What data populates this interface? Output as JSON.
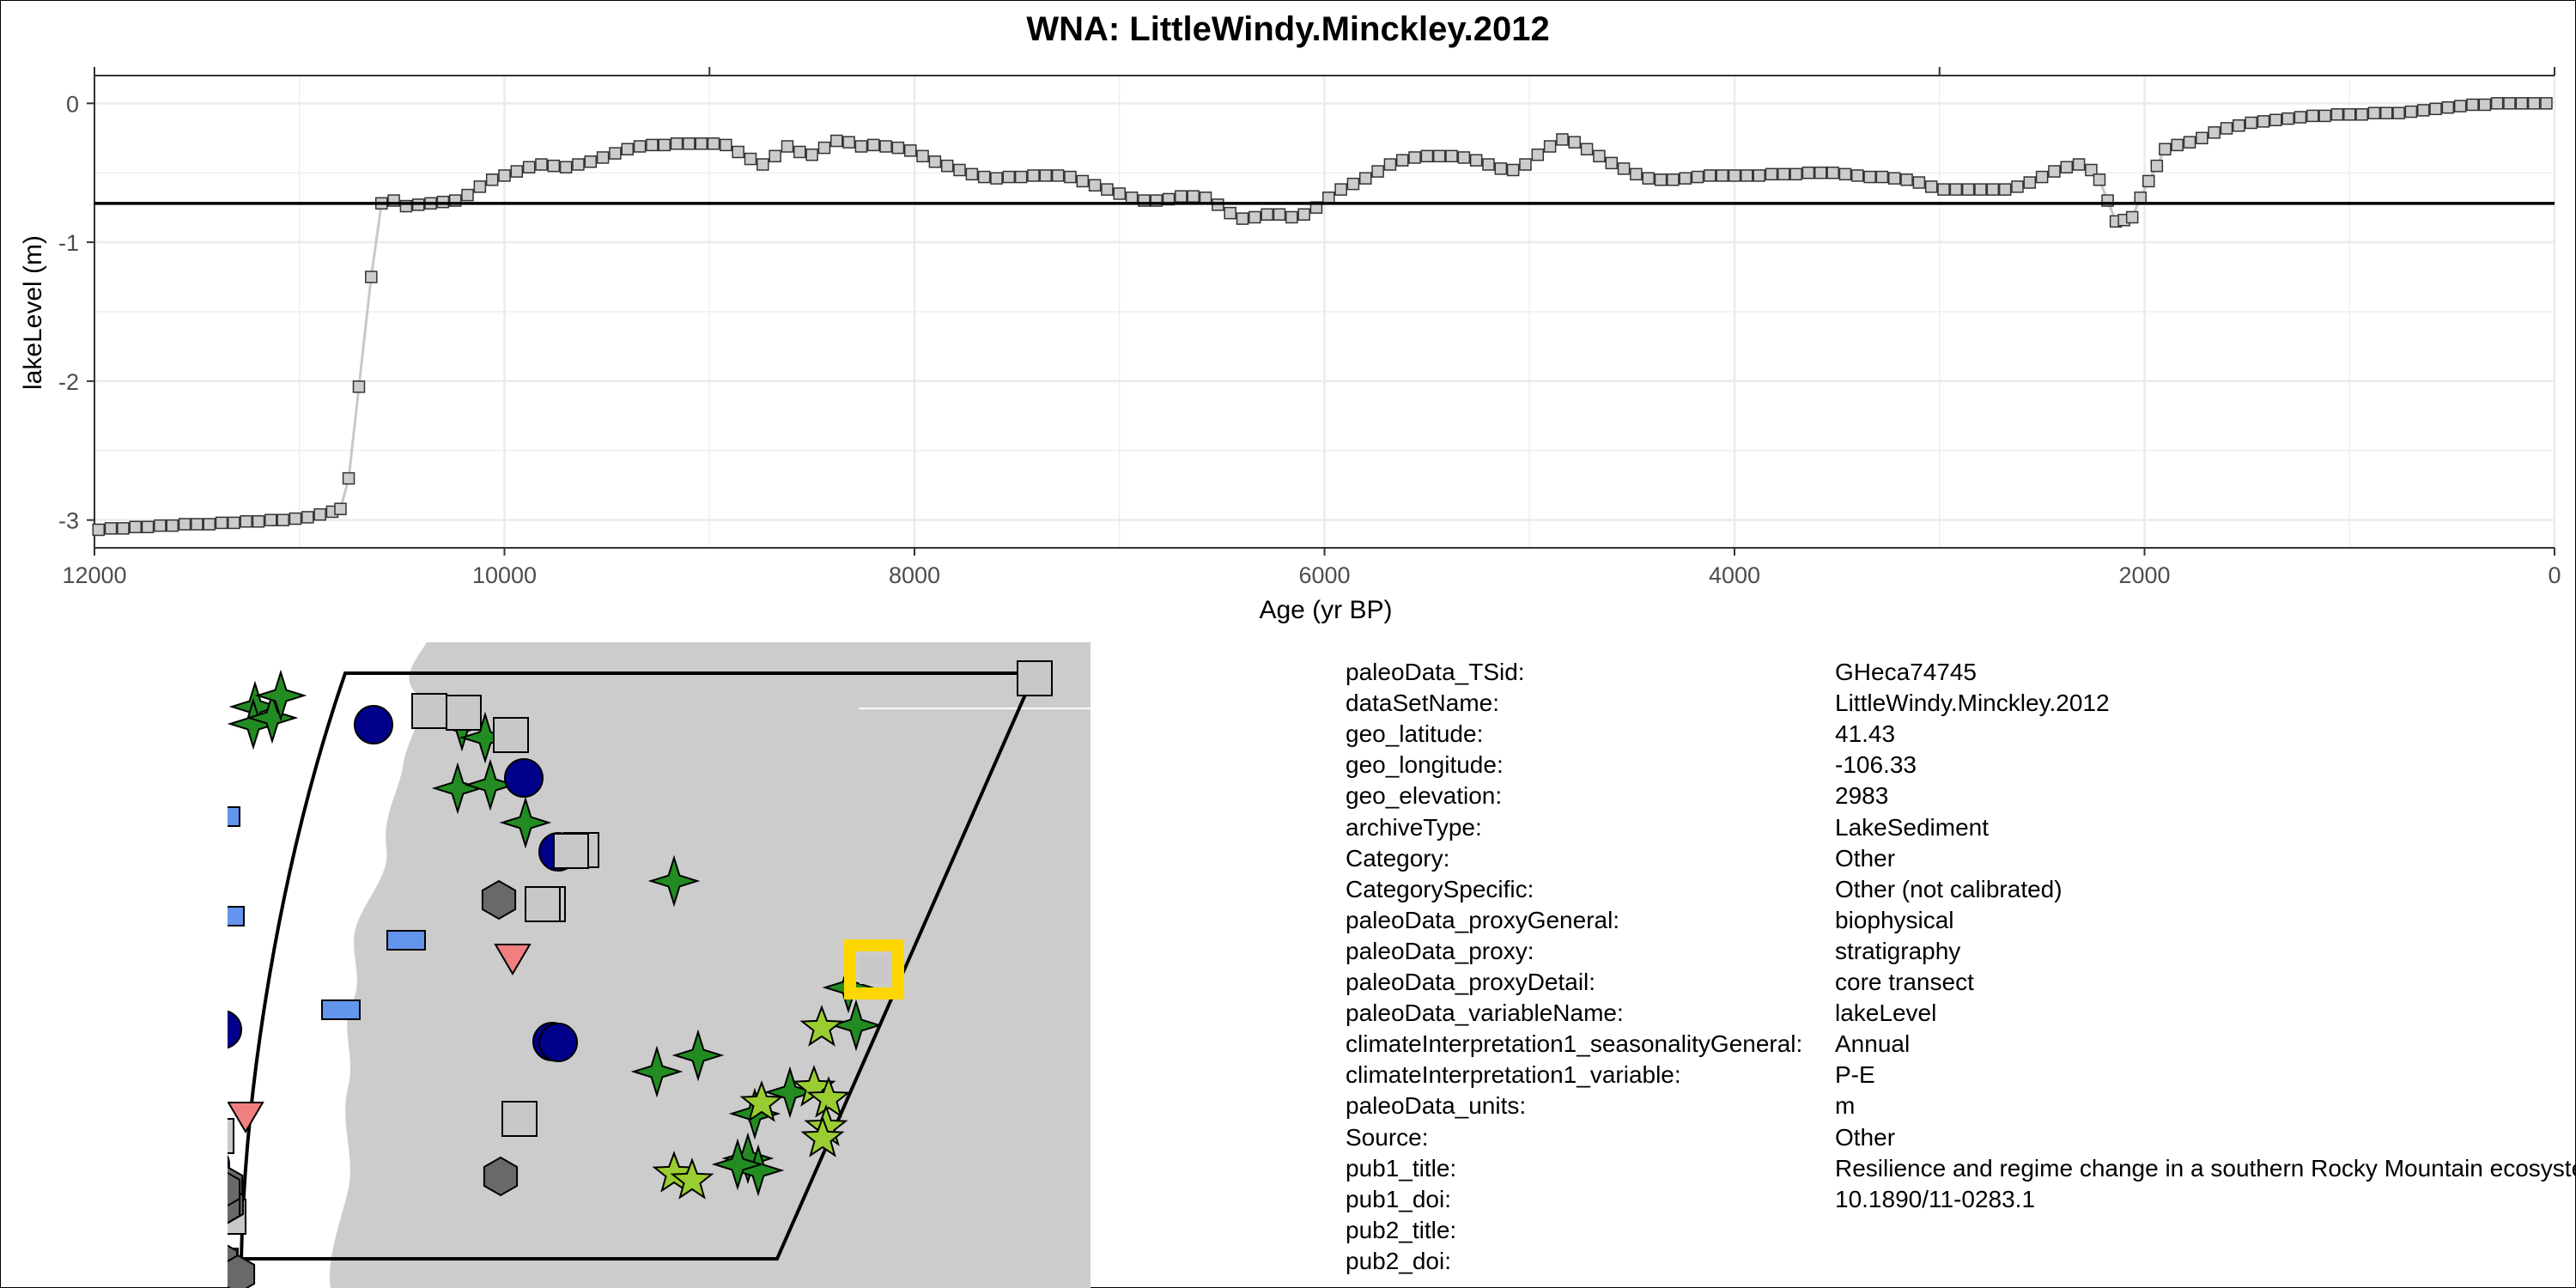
{
  "chart_data": {
    "type": "line",
    "title": "WNA: LittleWindy.Minckley.2012",
    "xlabel": "Age (yr BP)",
    "ylabel": "lakeLevel (m)",
    "xlim": [
      12000,
      0
    ],
    "x_reversed": true,
    "ylim": [
      -3.2,
      0.2
    ],
    "x_ticks": [
      "12000",
      "10000",
      "8000",
      "6000",
      "4000",
      "2000",
      "0"
    ],
    "y_ticks": [
      "0",
      "-1",
      "-2",
      "-3"
    ],
    "reference_line": -0.72,
    "grid": true,
    "marker": "square",
    "colors": {
      "marker_fill": "#cccccc",
      "line": "#c8c8c8",
      "reference": "#000000",
      "grid": "#ebebeb"
    },
    "series": [
      {
        "points": [
          [
            11980,
            -3.07
          ],
          [
            11920,
            -3.06
          ],
          [
            11860,
            -3.06
          ],
          [
            11800,
            -3.05
          ],
          [
            11740,
            -3.05
          ],
          [
            11680,
            -3.04
          ],
          [
            11620,
            -3.04
          ],
          [
            11560,
            -3.03
          ],
          [
            11500,
            -3.03
          ],
          [
            11440,
            -3.03
          ],
          [
            11380,
            -3.02
          ],
          [
            11320,
            -3.02
          ],
          [
            11260,
            -3.01
          ],
          [
            11200,
            -3.01
          ],
          [
            11140,
            -3.0
          ],
          [
            11080,
            -3.0
          ],
          [
            11020,
            -2.99
          ],
          [
            10960,
            -2.98
          ],
          [
            10900,
            -2.96
          ],
          [
            10840,
            -2.94
          ],
          [
            10800,
            -2.92
          ],
          [
            10760,
            -2.7
          ],
          [
            10710,
            -2.04
          ],
          [
            10650,
            -1.25
          ],
          [
            10600,
            -0.72
          ],
          [
            10540,
            -0.7
          ],
          [
            10480,
            -0.74
          ],
          [
            10420,
            -0.73
          ],
          [
            10360,
            -0.72
          ],
          [
            10300,
            -0.71
          ],
          [
            10240,
            -0.7
          ],
          [
            10180,
            -0.66
          ],
          [
            10120,
            -0.6
          ],
          [
            10060,
            -0.55
          ],
          [
            10000,
            -0.52
          ],
          [
            9940,
            -0.49
          ],
          [
            9880,
            -0.46
          ],
          [
            9820,
            -0.44
          ],
          [
            9760,
            -0.45
          ],
          [
            9700,
            -0.46
          ],
          [
            9640,
            -0.44
          ],
          [
            9580,
            -0.42
          ],
          [
            9520,
            -0.39
          ],
          [
            9460,
            -0.36
          ],
          [
            9400,
            -0.33
          ],
          [
            9340,
            -0.31
          ],
          [
            9280,
            -0.3
          ],
          [
            9220,
            -0.3
          ],
          [
            9160,
            -0.29
          ],
          [
            9100,
            -0.29
          ],
          [
            9040,
            -0.29
          ],
          [
            8980,
            -0.29
          ],
          [
            8920,
            -0.3
          ],
          [
            8860,
            -0.35
          ],
          [
            8800,
            -0.4
          ],
          [
            8740,
            -0.44
          ],
          [
            8680,
            -0.38
          ],
          [
            8620,
            -0.31
          ],
          [
            8560,
            -0.35
          ],
          [
            8500,
            -0.37
          ],
          [
            8440,
            -0.32
          ],
          [
            8380,
            -0.27
          ],
          [
            8320,
            -0.28
          ],
          [
            8260,
            -0.31
          ],
          [
            8200,
            -0.3
          ],
          [
            8140,
            -0.31
          ],
          [
            8080,
            -0.32
          ],
          [
            8020,
            -0.34
          ],
          [
            7960,
            -0.38
          ],
          [
            7900,
            -0.42
          ],
          [
            7840,
            -0.45
          ],
          [
            7780,
            -0.48
          ],
          [
            7720,
            -0.51
          ],
          [
            7660,
            -0.53
          ],
          [
            7600,
            -0.54
          ],
          [
            7540,
            -0.53
          ],
          [
            7480,
            -0.53
          ],
          [
            7420,
            -0.52
          ],
          [
            7360,
            -0.52
          ],
          [
            7300,
            -0.52
          ],
          [
            7240,
            -0.53
          ],
          [
            7180,
            -0.56
          ],
          [
            7120,
            -0.59
          ],
          [
            7060,
            -0.62
          ],
          [
            7000,
            -0.65
          ],
          [
            6940,
            -0.68
          ],
          [
            6880,
            -0.7
          ],
          [
            6820,
            -0.7
          ],
          [
            6760,
            -0.69
          ],
          [
            6700,
            -0.67
          ],
          [
            6640,
            -0.67
          ],
          [
            6580,
            -0.68
          ],
          [
            6520,
            -0.73
          ],
          [
            6460,
            -0.79
          ],
          [
            6400,
            -0.83
          ],
          [
            6340,
            -0.82
          ],
          [
            6280,
            -0.8
          ],
          [
            6220,
            -0.8
          ],
          [
            6160,
            -0.82
          ],
          [
            6100,
            -0.8
          ],
          [
            6040,
            -0.75
          ],
          [
            5980,
            -0.68
          ],
          [
            5920,
            -0.62
          ],
          [
            5860,
            -0.58
          ],
          [
            5800,
            -0.54
          ],
          [
            5740,
            -0.49
          ],
          [
            5680,
            -0.44
          ],
          [
            5620,
            -0.41
          ],
          [
            5560,
            -0.39
          ],
          [
            5500,
            -0.38
          ],
          [
            5440,
            -0.38
          ],
          [
            5380,
            -0.38
          ],
          [
            5320,
            -0.39
          ],
          [
            5260,
            -0.41
          ],
          [
            5200,
            -0.44
          ],
          [
            5140,
            -0.47
          ],
          [
            5080,
            -0.48
          ],
          [
            5020,
            -0.44
          ],
          [
            4960,
            -0.37
          ],
          [
            4900,
            -0.31
          ],
          [
            4840,
            -0.26
          ],
          [
            4780,
            -0.28
          ],
          [
            4720,
            -0.33
          ],
          [
            4660,
            -0.38
          ],
          [
            4600,
            -0.43
          ],
          [
            4540,
            -0.47
          ],
          [
            4480,
            -0.51
          ],
          [
            4420,
            -0.54
          ],
          [
            4360,
            -0.55
          ],
          [
            4300,
            -0.55
          ],
          [
            4240,
            -0.54
          ],
          [
            4180,
            -0.53
          ],
          [
            4120,
            -0.52
          ],
          [
            4060,
            -0.52
          ],
          [
            4000,
            -0.52
          ],
          [
            3940,
            -0.52
          ],
          [
            3880,
            -0.52
          ],
          [
            3820,
            -0.51
          ],
          [
            3760,
            -0.51
          ],
          [
            3700,
            -0.51
          ],
          [
            3640,
            -0.5
          ],
          [
            3580,
            -0.5
          ],
          [
            3520,
            -0.5
          ],
          [
            3460,
            -0.51
          ],
          [
            3400,
            -0.52
          ],
          [
            3340,
            -0.53
          ],
          [
            3280,
            -0.53
          ],
          [
            3220,
            -0.54
          ],
          [
            3160,
            -0.55
          ],
          [
            3100,
            -0.57
          ],
          [
            3040,
            -0.6
          ],
          [
            2980,
            -0.62
          ],
          [
            2920,
            -0.62
          ],
          [
            2860,
            -0.62
          ],
          [
            2800,
            -0.62
          ],
          [
            2740,
            -0.62
          ],
          [
            2680,
            -0.62
          ],
          [
            2620,
            -0.6
          ],
          [
            2560,
            -0.57
          ],
          [
            2500,
            -0.53
          ],
          [
            2440,
            -0.49
          ],
          [
            2380,
            -0.46
          ],
          [
            2320,
            -0.44
          ],
          [
            2260,
            -0.48
          ],
          [
            2220,
            -0.55
          ],
          [
            2180,
            -0.7
          ],
          [
            2140,
            -0.85
          ],
          [
            2100,
            -0.84
          ],
          [
            2060,
            -0.82
          ],
          [
            2020,
            -0.68
          ],
          [
            1980,
            -0.56
          ],
          [
            1940,
            -0.45
          ],
          [
            1900,
            -0.33
          ],
          [
            1840,
            -0.3
          ],
          [
            1780,
            -0.28
          ],
          [
            1720,
            -0.25
          ],
          [
            1660,
            -0.21
          ],
          [
            1600,
            -0.18
          ],
          [
            1540,
            -0.16
          ],
          [
            1480,
            -0.14
          ],
          [
            1420,
            -0.13
          ],
          [
            1360,
            -0.12
          ],
          [
            1300,
            -0.11
          ],
          [
            1240,
            -0.1
          ],
          [
            1180,
            -0.09
          ],
          [
            1120,
            -0.09
          ],
          [
            1060,
            -0.08
          ],
          [
            1000,
            -0.08
          ],
          [
            940,
            -0.08
          ],
          [
            880,
            -0.07
          ],
          [
            820,
            -0.07
          ],
          [
            760,
            -0.07
          ],
          [
            700,
            -0.06
          ],
          [
            640,
            -0.05
          ],
          [
            580,
            -0.04
          ],
          [
            520,
            -0.03
          ],
          [
            460,
            -0.02
          ],
          [
            400,
            -0.01
          ],
          [
            340,
            -0.01
          ],
          [
            280,
            0.0
          ],
          [
            220,
            0.0
          ],
          [
            160,
            0.0
          ],
          [
            100,
            0.0
          ],
          [
            40,
            0.0
          ]
        ]
      }
    ]
  },
  "map": {
    "colors": {
      "land": "#cccccc",
      "ocean": "#ffffff",
      "dark_green": "#228b22",
      "light_green": "#9acd32",
      "navy": "#00008b",
      "blue": "#6495ed",
      "gray_square": "#c8c8c8",
      "dark_gray": "#696969",
      "pink": "#f08080",
      "orange": "#ff8c00",
      "highlight": "#ffd700"
    },
    "symbols": [
      "star4-dark-green",
      "star5-light-green",
      "circle-navy",
      "rect-blue",
      "square-gray",
      "hexagon-dark-gray",
      "triangle-down-pink",
      "triangle-orange"
    ]
  },
  "metadata": {
    "rows": [
      {
        "key": "paleoData_TSid:",
        "value": "GHeca74745"
      },
      {
        "key": "dataSetName:",
        "value": "LittleWindy.Minckley.2012"
      },
      {
        "key": "geo_latitude:",
        "value": "41.43"
      },
      {
        "key": "geo_longitude:",
        "value": "-106.33"
      },
      {
        "key": "geo_elevation:",
        "value": "2983"
      },
      {
        "key": "archiveType:",
        "value": "LakeSediment"
      },
      {
        "key": "Category:",
        "value": "Other"
      },
      {
        "key": "CategorySpecific:",
        "value": "Other (not calibrated)"
      },
      {
        "key": "paleoData_proxyGeneral:",
        "value": "biophysical"
      },
      {
        "key": "paleoData_proxy:",
        "value": "stratigraphy"
      },
      {
        "key": "paleoData_proxyDetail:",
        "value": "core transect"
      },
      {
        "key": "paleoData_variableName:",
        "value": "lakeLevel"
      },
      {
        "key": "climateInterpretation1_seasonalityGeneral:",
        "value": "Annual"
      },
      {
        "key": "climateInterpretation1_variable:",
        "value": "P-E"
      },
      {
        "key": "paleoData_units:",
        "value": "m"
      },
      {
        "key": "Source:",
        "value": "Other"
      },
      {
        "key": "pub1_title:",
        "value": "Resilience and regime change in a southern Rocky Mountain ecosystem"
      },
      {
        "key": "pub1_doi:",
        "value": "10.1890/11-0283.1"
      },
      {
        "key": "pub2_title:",
        "value": ""
      },
      {
        "key": "pub2_doi:",
        "value": ""
      }
    ]
  }
}
